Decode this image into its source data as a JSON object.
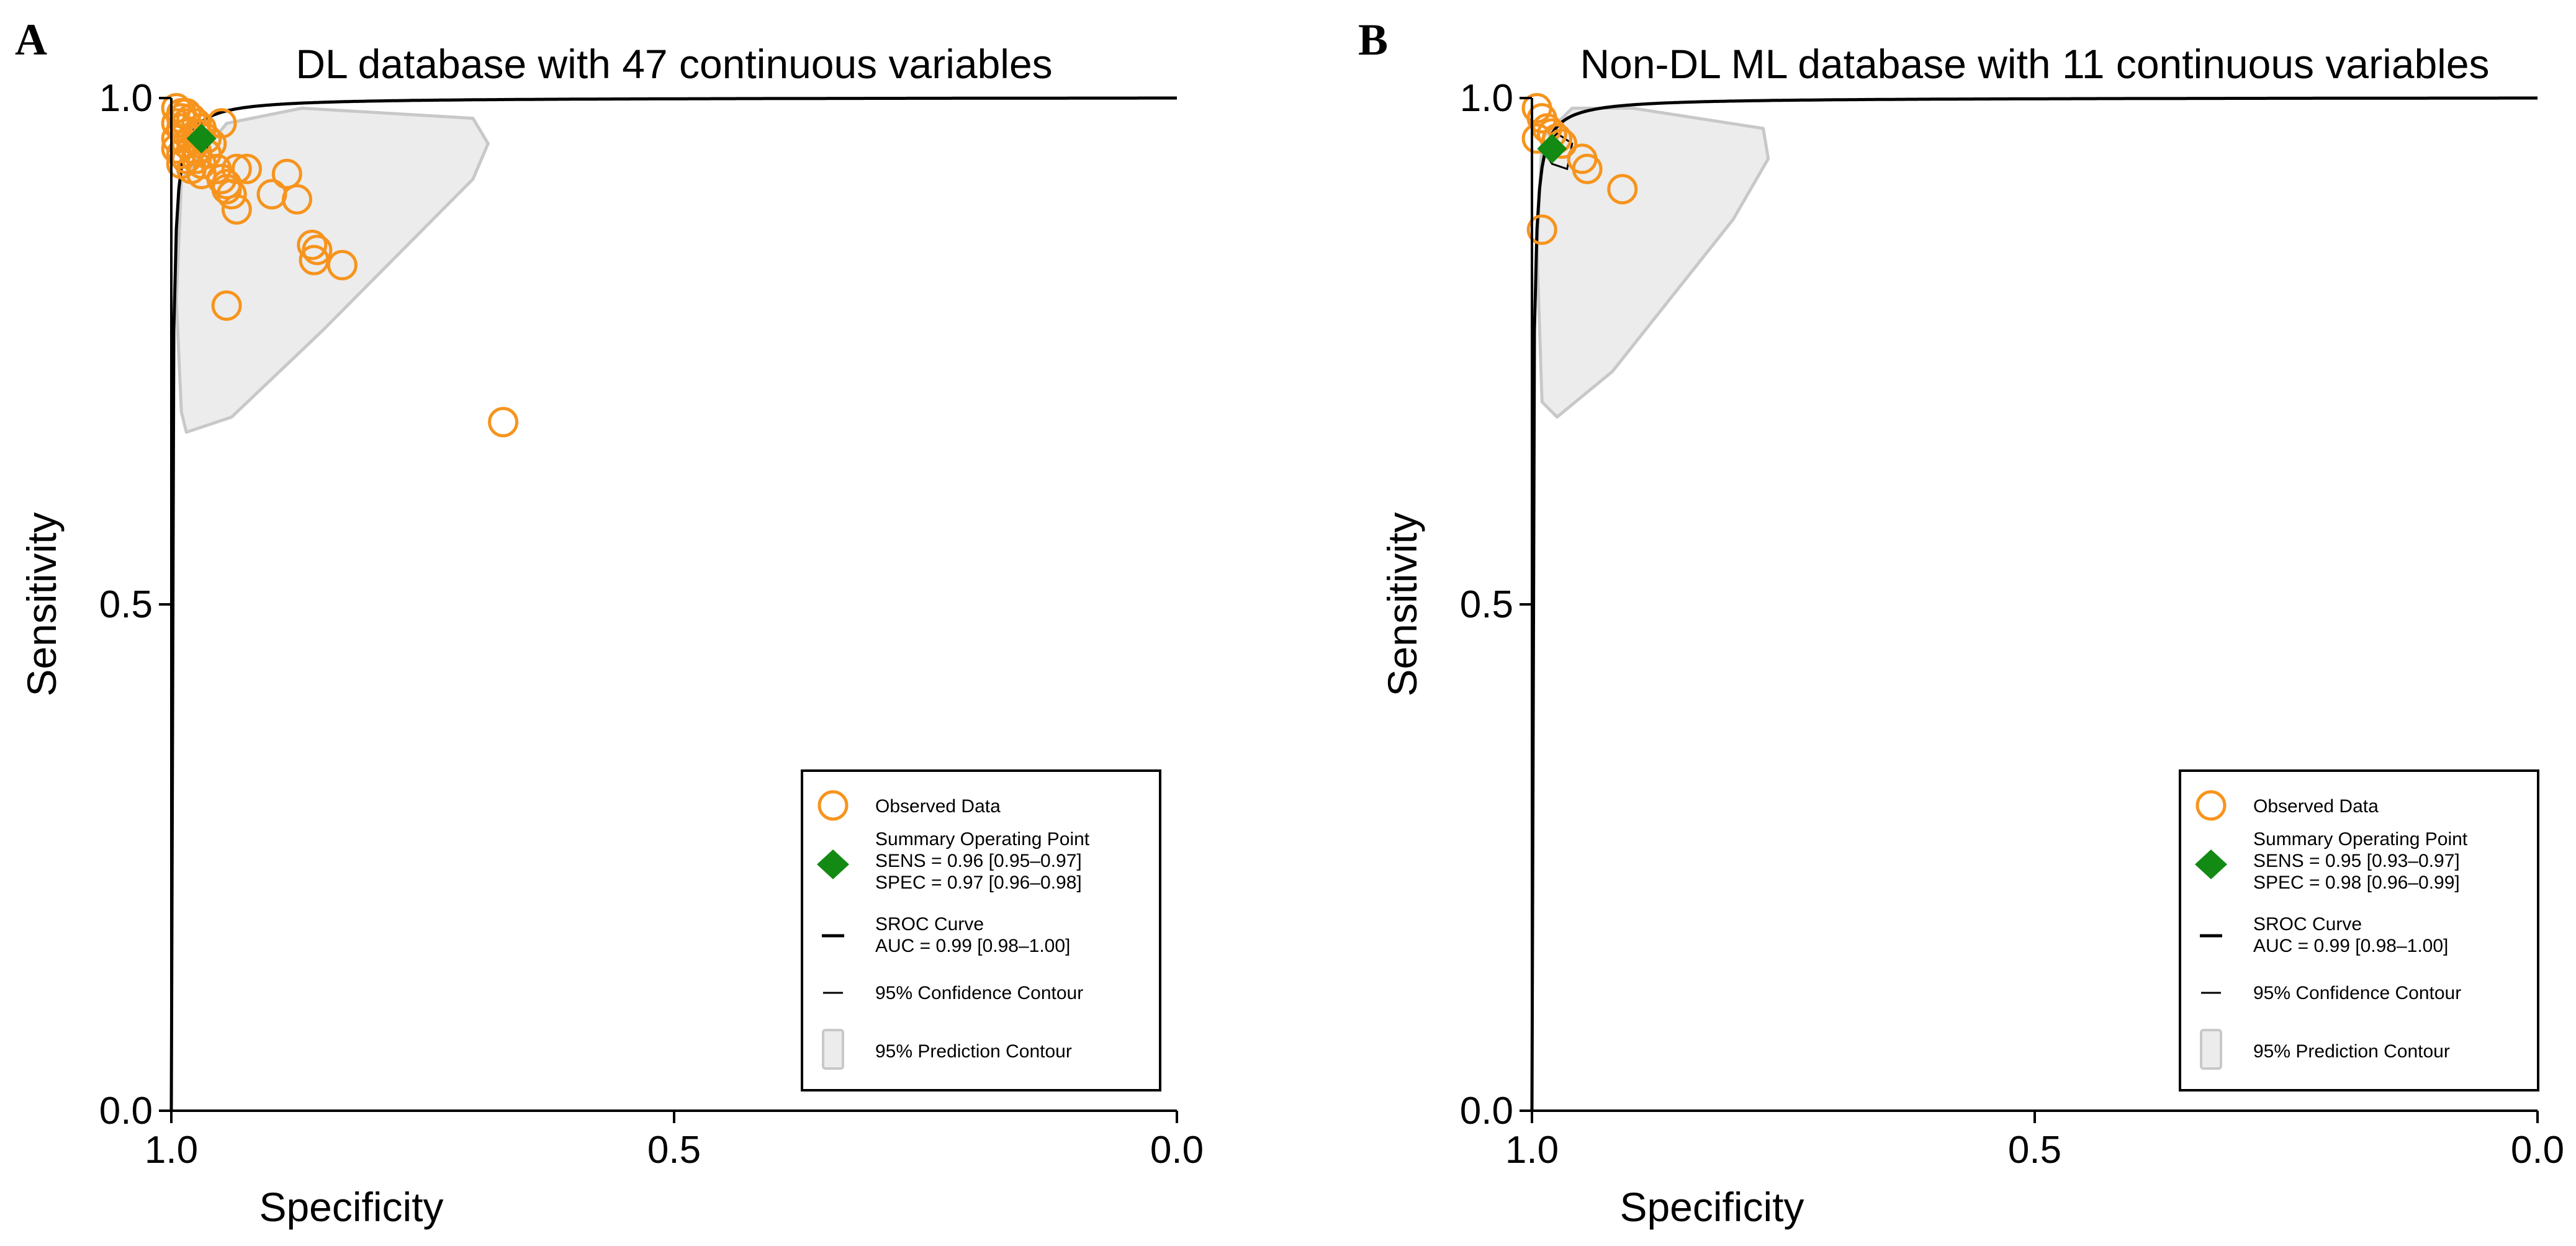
{
  "chart_data": [
    {
      "panel_label": "A",
      "type": "scatter",
      "title": "DL database with 47 continuous variables",
      "xlabel": "Specificity",
      "ylabel": "Sensitivity",
      "xlim": [
        1.0,
        0.0
      ],
      "ylim": [
        0.0,
        1.0
      ],
      "xticks": [
        "1.0",
        "0.5",
        "0.0"
      ],
      "yticks": [
        "0.0",
        "0.5",
        "1.0"
      ],
      "observed": {
        "specificity": [
          0.995,
          0.99,
          0.985,
          0.98,
          0.975,
          0.97,
          0.995,
          0.99,
          0.985,
          0.98,
          0.99,
          0.985,
          0.995,
          0.975,
          0.965,
          0.96,
          0.95,
          0.985,
          0.98,
          0.995,
          0.99,
          0.975,
          0.985,
          0.99,
          0.98,
          0.97,
          0.975,
          0.955,
          0.95,
          0.945,
          0.965,
          0.985,
          0.97,
          0.945,
          0.94,
          0.935,
          0.925,
          0.9,
          0.885,
          0.86,
          0.855,
          0.858,
          0.935,
          0.875,
          0.945,
          0.83,
          0.67
        ],
        "sensitivity": [
          0.99,
          0.985,
          0.985,
          0.98,
          0.975,
          0.97,
          0.975,
          0.97,
          0.965,
          0.96,
          0.98,
          0.975,
          0.96,
          0.965,
          0.96,
          0.955,
          0.975,
          0.955,
          0.95,
          0.95,
          0.945,
          0.948,
          0.94,
          0.935,
          0.93,
          0.925,
          0.94,
          0.93,
          0.92,
          0.915,
          0.945,
          0.94,
          0.935,
          0.91,
          0.905,
          0.93,
          0.93,
          0.905,
          0.925,
          0.855,
          0.85,
          0.84,
          0.89,
          0.9,
          0.795,
          0.835,
          0.68
        ]
      },
      "summary_point": {
        "specificity": 0.97,
        "sensitivity": 0.96
      },
      "prediction_contour": {
        "specificity": [
          0.99,
          0.995,
          0.99,
          0.945,
          0.87,
          0.7,
          0.685,
          0.7,
          0.85,
          0.94,
          0.985,
          0.99
        ],
        "sensitivity": [
          0.69,
          0.8,
          0.92,
          0.975,
          0.99,
          0.98,
          0.955,
          0.92,
          0.77,
          0.685,
          0.67,
          0.69
        ]
      },
      "confidence_contour": {
        "specificity": [
          0.98,
          0.975,
          0.965,
          0.96,
          0.965,
          0.975,
          0.98
        ],
        "sensitivity": [
          0.955,
          0.965,
          0.968,
          0.958,
          0.95,
          0.948,
          0.955
        ]
      },
      "legend": {
        "observed_label": "Observed Data",
        "summary_label": "Summary Operating Point",
        "sens_label": "SENS = 0.96 [0.95–0.97]",
        "spec_label": "SPEC = 0.97 [0.96–0.98]",
        "sroc_label": "SROC Curve",
        "auc_label": "AUC = 0.99 [0.98–1.00]",
        "confidence_label": "95% Confidence Contour",
        "prediction_label": "95% Prediction Contour",
        "placement": "bottom-right"
      }
    },
    {
      "panel_label": "B",
      "type": "scatter",
      "title": "Non-DL ML database with 11 continuous variables",
      "xlabel": "Specificity",
      "ylabel": "Sensitivity",
      "xlim": [
        1.0,
        0.0
      ],
      "ylim": [
        0.0,
        1.0
      ],
      "xticks": [
        "1.0",
        "0.5",
        "0.0"
      ],
      "yticks": [
        "0.0",
        "0.5",
        "1.0"
      ],
      "observed": {
        "specificity": [
          0.995,
          0.99,
          0.985,
          0.98,
          0.995,
          0.975,
          0.97,
          0.95,
          0.945,
          0.91,
          0.99
        ],
        "sensitivity": [
          0.99,
          0.98,
          0.97,
          0.965,
          0.96,
          0.96,
          0.955,
          0.94,
          0.93,
          0.91,
          0.87
        ]
      },
      "summary_point": {
        "specificity": 0.98,
        "sensitivity": 0.95
      },
      "prediction_contour": {
        "specificity": [
          0.99,
          0.995,
          0.99,
          0.96,
          0.9,
          0.77,
          0.765,
          0.8,
          0.92,
          0.975,
          0.99
        ],
        "sensitivity": [
          0.7,
          0.85,
          0.96,
          0.99,
          0.99,
          0.97,
          0.94,
          0.88,
          0.73,
          0.685,
          0.7
        ]
      },
      "confidence_contour": {
        "specificity": [
          0.99,
          0.975,
          0.96,
          0.965,
          0.98,
          0.99
        ],
        "sensitivity": [
          0.95,
          0.965,
          0.955,
          0.93,
          0.935,
          0.95
        ]
      },
      "legend": {
        "observed_label": "Observed Data",
        "summary_label": "Summary Operating Point",
        "sens_label": "SENS = 0.95 [0.93–0.97]",
        "spec_label": "SPEC = 0.98 [0.96–0.99]",
        "sroc_label": "SROC Curve",
        "auc_label": "AUC = 0.99 [0.98–1.00]",
        "confidence_label": "95% Confidence Contour",
        "prediction_label": "95% Prediction Contour",
        "placement": "bottom-right"
      }
    }
  ],
  "colors": {
    "observed": "#f7941d",
    "summary": "#138a13",
    "prediction_fill": "#ececec",
    "prediction_stroke": "#c8c8c8",
    "axis": "#000000"
  }
}
